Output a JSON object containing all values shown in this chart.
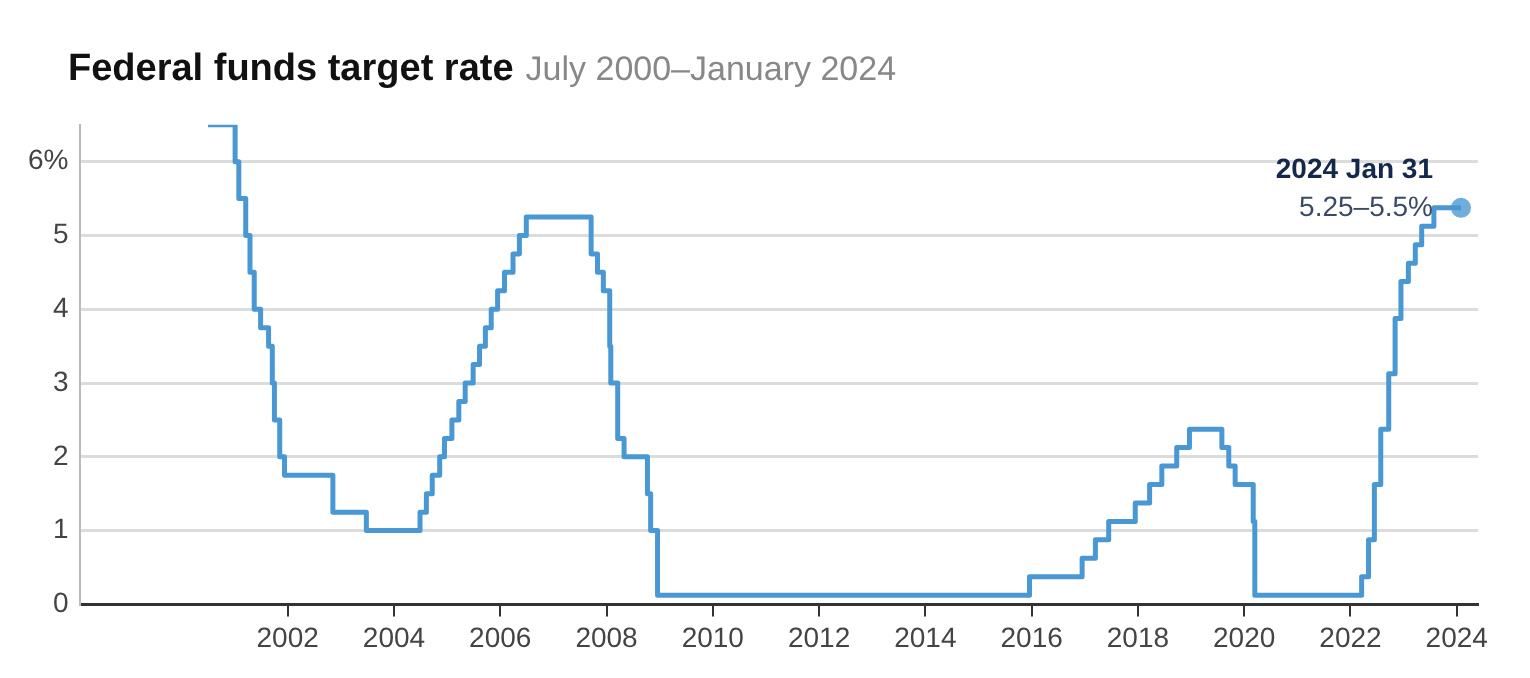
{
  "chart_data": {
    "type": "step",
    "title": "Federal funds target rate",
    "subtitle": "July 2000–January 2024",
    "x": [
      2000.5,
      2001.01,
      2001.08,
      2001.21,
      2001.29,
      2001.37,
      2001.49,
      2001.64,
      2001.71,
      2001.75,
      2001.85,
      2001.94,
      2002.85,
      2003.48,
      2004.49,
      2004.61,
      2004.72,
      2004.86,
      2004.95,
      2005.09,
      2005.22,
      2005.34,
      2005.49,
      2005.61,
      2005.72,
      2005.83,
      2005.95,
      2006.08,
      2006.24,
      2006.36,
      2006.49,
      2007.71,
      2007.83,
      2007.94,
      2008.06,
      2008.08,
      2008.21,
      2008.33,
      2008.77,
      2008.83,
      2008.96,
      2015.96,
      2016.95,
      2017.2,
      2017.45,
      2017.95,
      2018.22,
      2018.45,
      2018.73,
      2018.97,
      2019.58,
      2019.71,
      2019.83,
      2020.17,
      2020.2,
      2022.21,
      2022.34,
      2022.45,
      2022.57,
      2022.72,
      2022.84,
      2022.95,
      2023.09,
      2023.22,
      2023.34,
      2023.57,
      2024.08
    ],
    "series": [
      {
        "color": "#4a98d3",
        "values": [
          6.5,
          6,
          5.5,
          5,
          4.5,
          4,
          3.75,
          3.5,
          3,
          2.5,
          2,
          1.75,
          1.25,
          1,
          1.25,
          1.5,
          1.75,
          2,
          2.25,
          2.5,
          2.75,
          3,
          3.25,
          3.5,
          3.75,
          4,
          4.25,
          4.5,
          4.75,
          5,
          5.25,
          4.75,
          4.5,
          4.25,
          3.5,
          3,
          2.25,
          2,
          1.5,
          1,
          0.125,
          0.375,
          0.625,
          0.875,
          1.125,
          1.375,
          1.625,
          1.875,
          2.125,
          2.375,
          2.125,
          1.875,
          1.625,
          1.125,
          0.125,
          0.375,
          0.875,
          1.625,
          2.375,
          3.125,
          3.875,
          4.375,
          4.625,
          4.875,
          5.125,
          5.375,
          5.375
        ]
      }
    ],
    "xlim": [
      1998.1,
      2024.4
    ],
    "xticks": [
      2002,
      2004,
      2006,
      2008,
      2010,
      2012,
      2014,
      2016,
      2018,
      2020,
      2022,
      2024
    ],
    "ylim": [
      0,
      6.5
    ],
    "yticks": [
      0,
      1,
      2,
      3,
      4,
      5,
      {
        "value": 6,
        "label": "6%"
      }
    ],
    "grid": "y",
    "legend": false,
    "marker": "none",
    "line_style": "solid",
    "annotations": [
      {
        "text": "2024 Jan 31",
        "x": 2024.08,
        "y": 5.375
      },
      {
        "text": "5.25–5.5%",
        "x": 2024.08,
        "y": 5.375
      }
    ]
  }
}
